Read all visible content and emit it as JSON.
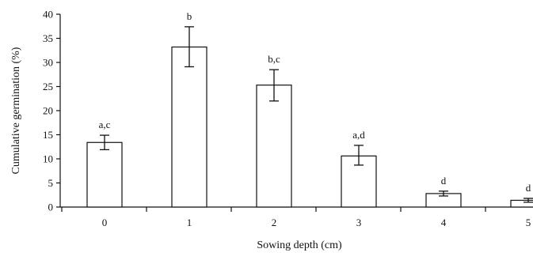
{
  "chart_data": {
    "type": "bar",
    "title": "",
    "xlabel": "Sowing depth (cm)",
    "ylabel": "Cumulative germination (%)",
    "categories": [
      "0",
      "1",
      "2",
      "3",
      "4",
      "5"
    ],
    "values": [
      13.4,
      33.2,
      25.3,
      10.6,
      2.8,
      1.4
    ],
    "error_low": [
      11.9,
      29.1,
      22.0,
      8.7,
      2.3,
      1.0
    ],
    "error_high": [
      14.9,
      37.4,
      28.5,
      12.8,
      3.3,
      1.8
    ],
    "bar_labels": [
      "a,c",
      "b",
      "b,c",
      "a,d",
      "d",
      "d"
    ],
    "ylim": [
      0,
      40
    ],
    "yticks": [
      0,
      5,
      10,
      15,
      20,
      25,
      30,
      35,
      40
    ],
    "grid": false,
    "legend": "none",
    "colors": {
      "bar_fill": "#ffffff",
      "bar_stroke": "#111111",
      "axis": "#111111"
    }
  }
}
